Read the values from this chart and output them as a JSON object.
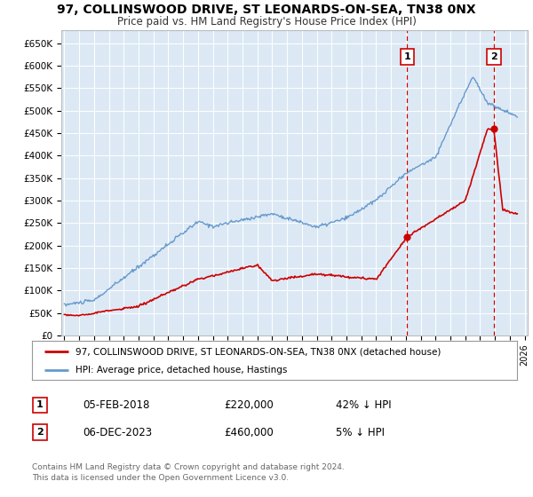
{
  "title": "97, COLLINSWOOD DRIVE, ST LEONARDS-ON-SEA, TN38 0NX",
  "subtitle": "Price paid vs. HM Land Registry's House Price Index (HPI)",
  "ylim": [
    0,
    680000
  ],
  "yticks": [
    0,
    50000,
    100000,
    150000,
    200000,
    250000,
    300000,
    350000,
    400000,
    450000,
    500000,
    550000,
    600000,
    650000
  ],
  "ytick_labels": [
    "£0",
    "£50K",
    "£100K",
    "£150K",
    "£200K",
    "£250K",
    "£300K",
    "£350K",
    "£400K",
    "£450K",
    "£500K",
    "£550K",
    "£600K",
    "£650K"
  ],
  "xlim_start": 1994.8,
  "xlim_end": 2026.2,
  "background_color": "#dce9f5",
  "fig_bg_color": "#ffffff",
  "sale1_date_num": 2018.09,
  "sale1_price": 220000,
  "sale1_label": "1",
  "sale1_date_str": "05-FEB-2018",
  "sale1_price_str": "£220,000",
  "sale1_pct": "42% ↓ HPI",
  "sale2_date_num": 2023.92,
  "sale2_price": 460000,
  "sale2_label": "2",
  "sale2_date_str": "06-DEC-2023",
  "sale2_price_str": "£460,000",
  "sale2_pct": "5% ↓ HPI",
  "line_color_property": "#cc0000",
  "line_color_hpi": "#6699cc",
  "dot_color_property": "#cc0000",
  "vline_color": "#cc0000",
  "legend_property_label": "97, COLLINSWOOD DRIVE, ST LEONARDS-ON-SEA, TN38 0NX (detached house)",
  "legend_hpi_label": "HPI: Average price, detached house, Hastings",
  "footer_text": "Contains HM Land Registry data © Crown copyright and database right 2024.\nThis data is licensed under the Open Government Licence v3.0."
}
